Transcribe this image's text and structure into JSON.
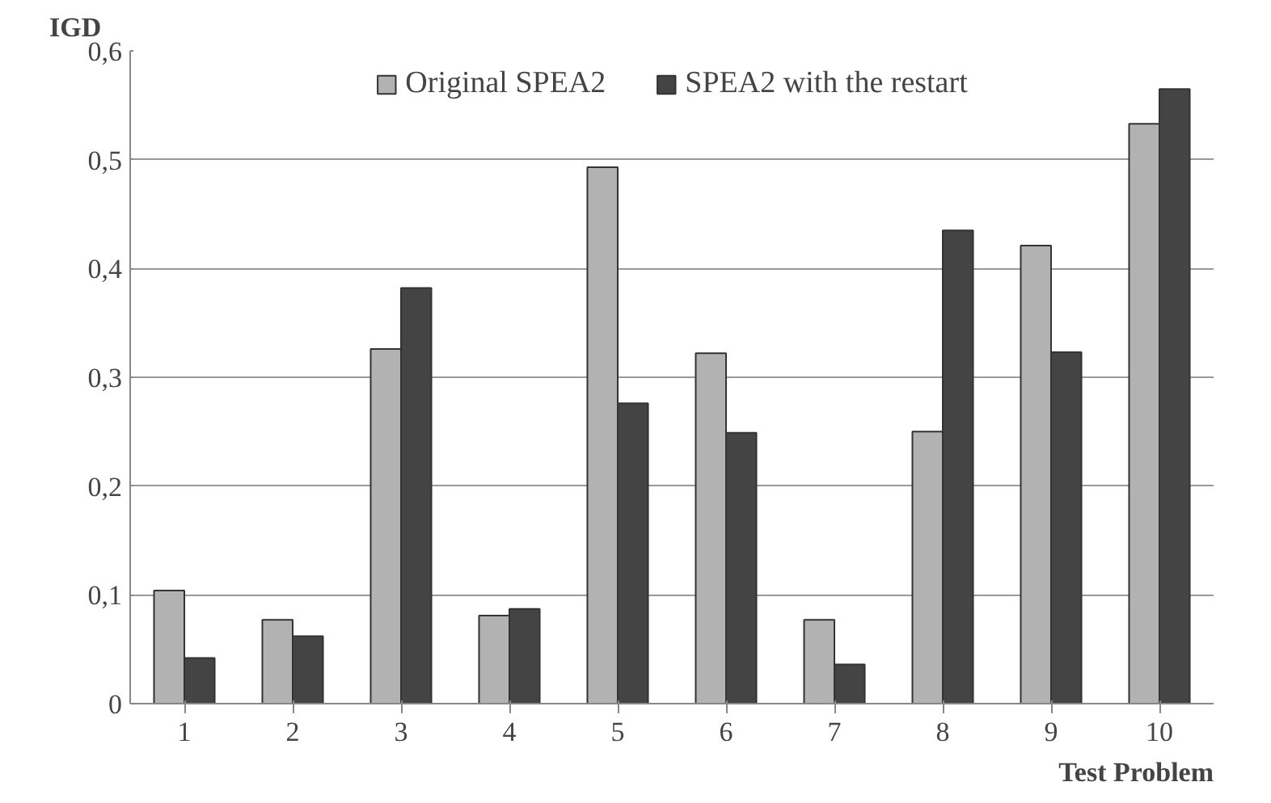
{
  "chart_data": {
    "type": "bar",
    "xlabel": "Test Problem",
    "ylabel": "IGD",
    "categories": [
      "1",
      "2",
      "3",
      "4",
      "5",
      "6",
      "7",
      "8",
      "9",
      "10"
    ],
    "series": [
      {
        "name": "Original SPEA2",
        "color": "#b2b2b2",
        "values": [
          0.104,
          0.077,
          0.326,
          0.081,
          0.493,
          0.322,
          0.077,
          0.25,
          0.421,
          0.533
        ]
      },
      {
        "name": "SPEA2 with the restart",
        "color": "#444444",
        "values": [
          0.042,
          0.062,
          0.382,
          0.087,
          0.276,
          0.249,
          0.036,
          0.435,
          0.323,
          0.565
        ]
      }
    ],
    "ylim": [
      0,
      0.6
    ],
    "yticks": [
      {
        "value": 0,
        "label": "0"
      },
      {
        "value": 0.1,
        "label": "0,1"
      },
      {
        "value": 0.2,
        "label": "0,2"
      },
      {
        "value": 0.3,
        "label": "0,3"
      },
      {
        "value": 0.4,
        "label": "0,4"
      },
      {
        "value": 0.5,
        "label": "0,5"
      },
      {
        "value": 0.6,
        "label": "0,6"
      }
    ],
    "grid": "y",
    "legend": "top"
  }
}
